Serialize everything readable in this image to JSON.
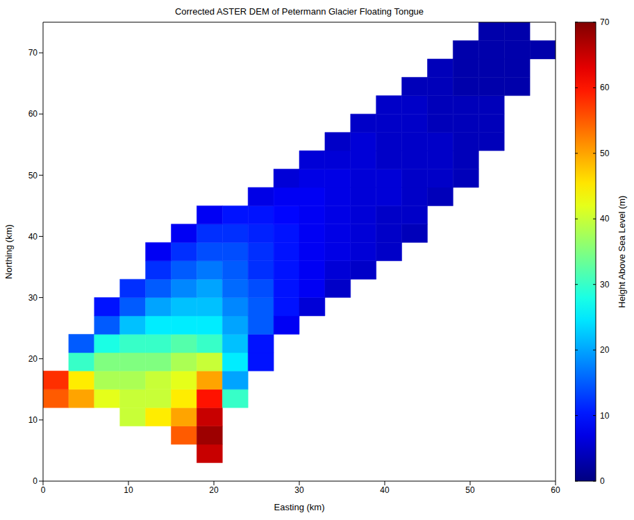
{
  "chart_data": {
    "type": "heatmap",
    "title": "Corrected ASTER DEM of Petermann Glacier Floating Tongue",
    "x_label": "Easting (km)",
    "y_label": "Northing (km)",
    "x": [
      1.5,
      4.5,
      7.5,
      10.5,
      13.5,
      16.5,
      19.5,
      22.5,
      25.5,
      28.5,
      31.5,
      34.5,
      37.5,
      40.5,
      43.5,
      46.5,
      49.5,
      52.5,
      55.5,
      58.5
    ],
    "y": [
      1.5,
      4.5,
      7.5,
      10.5,
      13.5,
      16.5,
      19.5,
      22.5,
      25.5,
      28.5,
      31.5,
      34.5,
      37.5,
      40.5,
      43.5,
      46.5,
      49.5,
      52.5,
      55.5,
      58.5,
      61.5,
      64.5,
      67.5,
      70.5,
      73.5
    ],
    "z": [
      [
        null,
        null,
        null,
        null,
        null,
        null,
        null,
        null,
        null,
        null,
        null,
        null,
        null,
        null,
        null,
        null,
        null,
        null,
        null,
        null
      ],
      [
        null,
        null,
        null,
        null,
        null,
        null,
        65,
        null,
        null,
        null,
        null,
        null,
        null,
        null,
        null,
        null,
        null,
        null,
        null,
        null
      ],
      [
        null,
        null,
        null,
        null,
        null,
        55,
        68,
        null,
        null,
        null,
        null,
        null,
        null,
        null,
        null,
        null,
        null,
        null,
        null,
        null
      ],
      [
        null,
        null,
        null,
        40,
        45,
        50,
        65,
        null,
        null,
        null,
        null,
        null,
        null,
        null,
        null,
        null,
        null,
        null,
        null,
        null
      ],
      [
        55,
        50,
        42,
        40,
        40,
        45,
        60,
        30,
        null,
        null,
        null,
        null,
        null,
        null,
        null,
        null,
        null,
        null,
        null,
        null
      ],
      [
        58,
        45,
        38,
        38,
        40,
        42,
        50,
        20,
        null,
        null,
        null,
        null,
        null,
        null,
        null,
        null,
        null,
        null,
        null,
        null
      ],
      [
        null,
        30,
        35,
        35,
        35,
        38,
        40,
        25,
        10,
        null,
        null,
        null,
        null,
        null,
        null,
        null,
        null,
        null,
        null,
        null
      ],
      [
        null,
        15,
        28,
        30,
        30,
        32,
        30,
        22,
        10,
        null,
        null,
        null,
        null,
        null,
        null,
        null,
        null,
        null,
        null,
        null
      ],
      [
        null,
        null,
        15,
        22,
        25,
        25,
        25,
        20,
        15,
        8,
        null,
        null,
        null,
        null,
        null,
        null,
        null,
        null,
        null,
        null
      ],
      [
        null,
        null,
        10,
        15,
        20,
        22,
        22,
        18,
        15,
        10,
        6,
        null,
        null,
        null,
        null,
        null,
        null,
        null,
        null,
        null
      ],
      [
        null,
        null,
        null,
        12,
        15,
        18,
        20,
        16,
        14,
        10,
        8,
        5,
        null,
        null,
        null,
        null,
        null,
        null,
        null,
        null
      ],
      [
        null,
        null,
        null,
        null,
        12,
        15,
        17,
        15,
        12,
        10,
        8,
        6,
        5,
        null,
        null,
        null,
        null,
        null,
        null,
        null
      ],
      [
        null,
        null,
        null,
        null,
        8,
        12,
        14,
        14,
        12,
        10,
        8,
        7,
        6,
        5,
        null,
        null,
        null,
        null,
        null,
        null
      ],
      [
        null,
        null,
        null,
        null,
        null,
        8,
        12,
        12,
        11,
        10,
        8,
        7,
        6,
        5,
        4,
        null,
        null,
        null,
        null,
        null
      ],
      [
        null,
        null,
        null,
        null,
        null,
        null,
        8,
        10,
        10,
        9,
        8,
        7,
        6,
        5,
        5,
        null,
        null,
        null,
        null,
        null
      ],
      [
        null,
        null,
        null,
        null,
        null,
        null,
        null,
        null,
        7,
        8,
        8,
        7,
        6,
        6,
        5,
        4,
        null,
        null,
        null,
        null
      ],
      [
        null,
        null,
        null,
        null,
        null,
        null,
        null,
        null,
        null,
        6,
        7,
        7,
        6,
        6,
        5,
        5,
        4,
        null,
        null,
        null
      ],
      [
        null,
        null,
        null,
        null,
        null,
        null,
        null,
        null,
        null,
        null,
        6,
        6,
        6,
        5,
        5,
        5,
        4,
        null,
        null,
        null
      ],
      [
        null,
        null,
        null,
        null,
        null,
        null,
        null,
        null,
        null,
        null,
        null,
        5,
        6,
        5,
        5,
        5,
        4,
        4,
        null,
        null
      ],
      [
        null,
        null,
        null,
        null,
        null,
        null,
        null,
        null,
        null,
        null,
        null,
        null,
        5,
        5,
        5,
        4,
        4,
        4,
        null,
        null
      ],
      [
        null,
        null,
        null,
        null,
        null,
        null,
        null,
        null,
        null,
        null,
        null,
        null,
        null,
        5,
        5,
        4,
        4,
        4,
        null,
        null
      ],
      [
        null,
        null,
        null,
        null,
        null,
        null,
        null,
        null,
        null,
        null,
        null,
        null,
        null,
        null,
        4,
        4,
        3,
        3,
        3,
        null
      ],
      [
        null,
        null,
        null,
        null,
        null,
        null,
        null,
        null,
        null,
        null,
        null,
        null,
        null,
        null,
        null,
        4,
        3,
        3,
        3,
        null
      ],
      [
        null,
        null,
        null,
        null,
        null,
        null,
        null,
        null,
        null,
        null,
        null,
        null,
        null,
        null,
        null,
        null,
        3,
        3,
        3,
        3
      ],
      [
        null,
        null,
        null,
        null,
        null,
        null,
        null,
        null,
        null,
        null,
        null,
        null,
        null,
        null,
        null,
        null,
        null,
        3,
        3,
        null
      ]
    ],
    "xlim": [
      0,
      60
    ],
    "ylim": [
      0,
      75
    ],
    "xticks": [
      0,
      10,
      20,
      30,
      40,
      50,
      60
    ],
    "yticks": [
      0,
      10,
      20,
      30,
      40,
      50,
      60,
      70
    ],
    "colorbar": {
      "label": "Height Above Sea Level (m)",
      "range": [
        0,
        70
      ],
      "ticks": [
        0,
        10,
        20,
        30,
        40,
        50,
        60,
        70
      ]
    },
    "grid": false
  }
}
